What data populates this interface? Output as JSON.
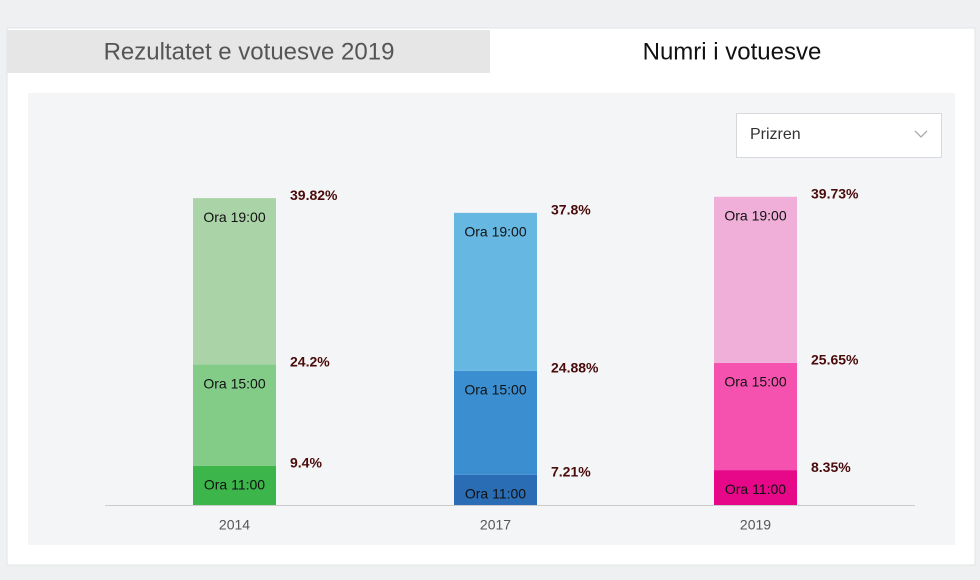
{
  "tabs": [
    "Rezultatet e votuesve 2019",
    "Numri i votuesve"
  ],
  "dropdown": {
    "selected": "Prizren"
  },
  "chart_data": {
    "type": "bar",
    "stacked": true,
    "categories": [
      "2014",
      "2017",
      "2019"
    ],
    "series": [
      {
        "name": "Ora 11:00",
        "colors": [
          "#3cb54a",
          "#2a6db5",
          "#e7088a"
        ],
        "values": [
          9.4,
          7.21,
          8.35
        ],
        "value_labels": [
          "9.4%",
          "7.21%",
          "8.35%"
        ]
      },
      {
        "name": "Ora 15:00",
        "colors": [
          "#82cc88",
          "#3b8fd0",
          "#f452ae"
        ],
        "values": [
          24.2,
          24.88,
          25.65
        ],
        "value_labels": [
          "24.2%",
          "24.88%",
          "25.65%"
        ]
      },
      {
        "name": "Ora 19:00",
        "colors": [
          "#aad3a8",
          "#66b8e3",
          "#efafd8"
        ],
        "values": [
          39.82,
          37.8,
          39.73
        ],
        "value_labels": [
          "39.82%",
          "37.8%",
          "39.73%"
        ]
      }
    ]
  }
}
